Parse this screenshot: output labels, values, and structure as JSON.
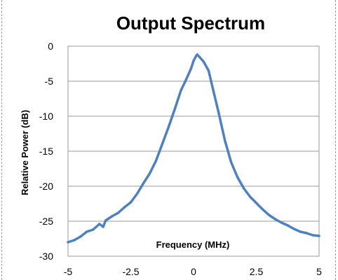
{
  "chart_data": {
    "type": "line",
    "title": "Output Spectrum",
    "xlabel": "Frequency (MHz)",
    "ylabel": "Relative Power (dB)",
    "xlim": [
      -5,
      5
    ],
    "ylim": [
      -30,
      0
    ],
    "x_ticks": [
      "-5",
      "-2.5",
      "0",
      "2.5",
      "5"
    ],
    "y_ticks": [
      "0",
      "-5",
      "-10",
      "-15",
      "-20",
      "-25",
      "-30"
    ],
    "grid": "horizontal",
    "legend": "none",
    "colors": {
      "line": "#4f81bd",
      "grid": "#9a9a9a",
      "plot_border": "#9a9a9a"
    },
    "series": [
      {
        "x": [
          -5,
          -4.75,
          -4.5,
          -4.25,
          -4,
          -3.75,
          -3.6,
          -3.5,
          -3.25,
          -3,
          -2.75,
          -2.5,
          -2.25,
          -2,
          -1.75,
          -1.5,
          -1.25,
          -1,
          -0.75,
          -0.5,
          -0.3,
          -0.1,
          0,
          0.1,
          0.15,
          0.25,
          0.4,
          0.6,
          0.8,
          1,
          1.25,
          1.5,
          1.75,
          2,
          2.25,
          2.5,
          2.75,
          3,
          3.25,
          3.5,
          3.75,
          4,
          4.25,
          4.5,
          4.75,
          5
        ],
        "y": [
          -28,
          -27.7,
          -27.2,
          -26.5,
          -26.2,
          -25.4,
          -25.8,
          -24.9,
          -24.3,
          -23.8,
          -23.0,
          -22.3,
          -21.1,
          -19.6,
          -18.2,
          -16.4,
          -14.0,
          -11.6,
          -9.0,
          -6.3,
          -4.8,
          -3.2,
          -2.1,
          -1.4,
          -1.2,
          -1.6,
          -2.2,
          -3.5,
          -6.5,
          -9.5,
          -13.5,
          -16.6,
          -18.7,
          -20.3,
          -21.5,
          -22.4,
          -23.3,
          -24.1,
          -24.7,
          -25.2,
          -25.6,
          -26.1,
          -26.5,
          -26.7,
          -27.0,
          -27.1
        ]
      }
    ]
  }
}
